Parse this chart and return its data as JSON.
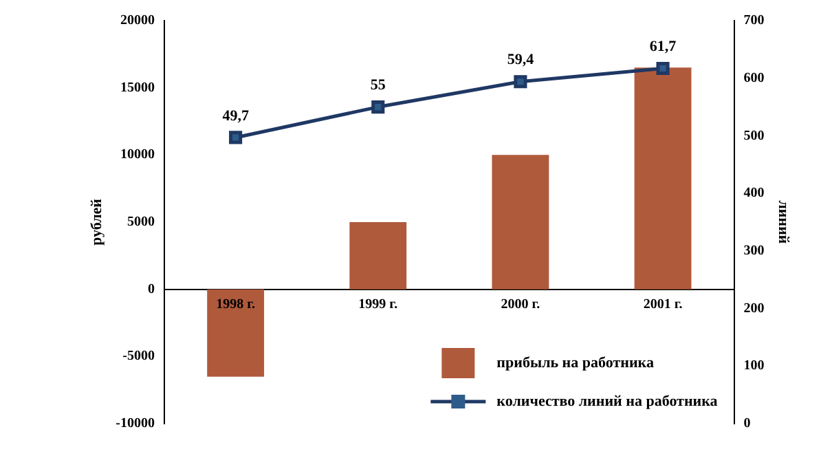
{
  "chart_data": {
    "type": "bar",
    "categories": [
      "1998 г.",
      "1999 г.",
      "2000 г.",
      "2001 г."
    ],
    "ylabel": "рублей",
    "y2label": "линий",
    "ylim": [
      -10000,
      20000
    ],
    "yticks": [
      -10000,
      -5000,
      0,
      5000,
      10000,
      15000,
      20000
    ],
    "y2lim": [
      0,
      700
    ],
    "y2ticks": [
      0,
      100,
      200,
      300,
      400,
      500,
      600,
      700
    ],
    "series": [
      {
        "name": "прибыль на работника",
        "color": "#b05a3c",
        "values": [
          -6500,
          5000,
          10000,
          16500
        ]
      },
      {
        "name": "количество линий на работника",
        "type": "line",
        "axis": "y2",
        "color": "#1f3864",
        "values": [
          497,
          550,
          594,
          617
        ]
      }
    ],
    "annotations": [
      "49,7",
      "55",
      "59,4",
      "61,7"
    ],
    "marker": "square",
    "grid": false,
    "legend": "bottom right"
  }
}
